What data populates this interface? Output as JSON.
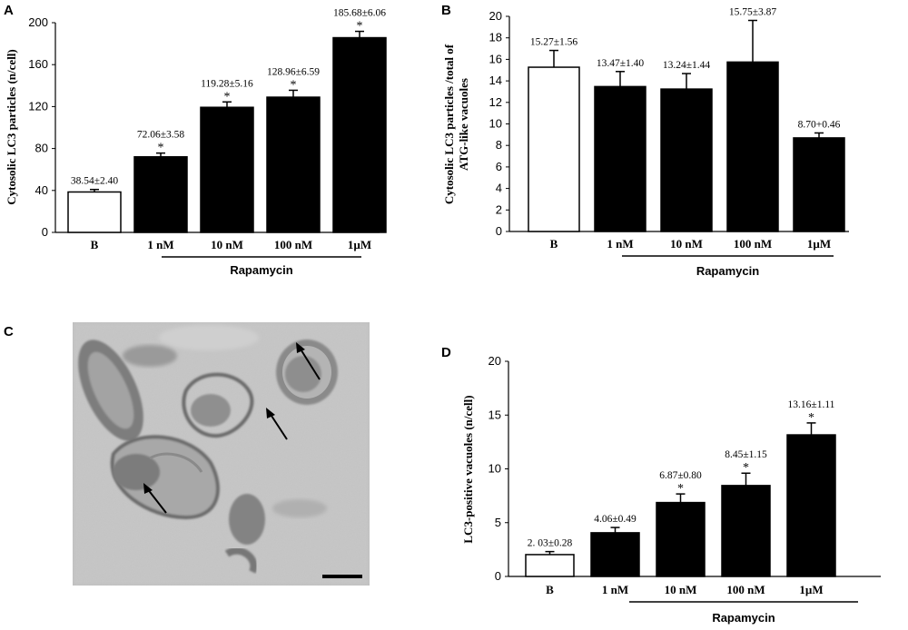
{
  "panels": {
    "A": "A",
    "B": "B",
    "C": "C",
    "D": "D"
  },
  "chart_data": [
    {
      "panel": "A",
      "type": "bar",
      "ylabel": "Cytosolic LC3 particles (n/cell)",
      "categories": [
        "B",
        "1 nM",
        "10 nM",
        "100 nM",
        "1µM"
      ],
      "values": [
        38.54,
        72.06,
        119.28,
        128.96,
        185.68
      ],
      "errors": [
        2.4,
        3.58,
        5.16,
        6.59,
        6.06
      ],
      "labels": [
        "38.54±2.40",
        "72.06±3.58",
        "119.28±5.16",
        "128.96±6.59",
        "185.68±6.06"
      ],
      "significant": [
        false,
        true,
        true,
        true,
        true
      ],
      "significance_mark": "*",
      "fills": [
        "#ffffff",
        "#000000",
        "#000000",
        "#000000",
        "#000000"
      ],
      "ylim": [
        0,
        200
      ],
      "yticks": [
        0,
        40,
        80,
        120,
        160,
        200
      ],
      "group_label": "Rapamycin"
    },
    {
      "panel": "B",
      "type": "bar",
      "ylabel": "Cytosolic LC3 particles /total of ATG-like vacuoles",
      "ylabel_lines": [
        "Cytosolic LC3 particles /total of",
        "ATG-like vacuoles"
      ],
      "categories": [
        "B",
        "1 nM",
        "10 nM",
        "100 nM",
        "1µM"
      ],
      "values": [
        15.27,
        13.47,
        13.24,
        15.75,
        8.7
      ],
      "errors": [
        1.56,
        1.4,
        1.44,
        3.87,
        0.46
      ],
      "labels": [
        "15.27±1.56",
        "13.47±1.40",
        "13.24±1.44",
        "15.75±3.87",
        "8.70+0.46"
      ],
      "significant": [
        false,
        false,
        false,
        false,
        false
      ],
      "significance_mark": "*",
      "fills": [
        "#ffffff",
        "#000000",
        "#000000",
        "#000000",
        "#000000"
      ],
      "ylim": [
        0,
        20
      ],
      "yticks": [
        0,
        2,
        4,
        6,
        8,
        10,
        12,
        14,
        16,
        18,
        20
      ],
      "group_label": "Rapamycin"
    },
    {
      "panel": "D",
      "type": "bar",
      "ylabel": "LC3-positive vacuoles (n/cell)",
      "categories": [
        "B",
        "1 nM",
        "10 nM",
        "100 nM",
        "1µM"
      ],
      "values": [
        2.03,
        4.06,
        6.87,
        8.45,
        13.16
      ],
      "errors": [
        0.28,
        0.49,
        0.8,
        1.15,
        1.11
      ],
      "labels": [
        "2. 03±0.28",
        "4.06±0.49",
        "6.87±0.80",
        "8.45±1.15",
        "13.16±1.11"
      ],
      "significant": [
        false,
        false,
        true,
        true,
        true
      ],
      "significance_mark": "*",
      "fills": [
        "#ffffff",
        "#000000",
        "#000000",
        "#000000",
        "#000000"
      ],
      "ylim": [
        0,
        20
      ],
      "yticks": [
        0,
        5,
        10,
        15,
        20
      ],
      "group_label": "Rapamycin"
    }
  ],
  "micrograph": {
    "arrow_count": 3,
    "has_scale_bar": true
  }
}
